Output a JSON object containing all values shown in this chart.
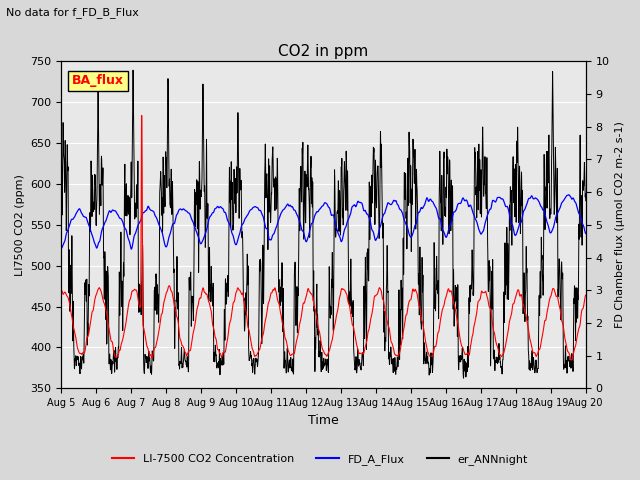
{
  "title": "CO2 in ppm",
  "title_note": "No data for f_FD_B_Flux",
  "ylabel_left": "LI7500 CO2 (ppm)",
  "ylabel_right": "FD Chamber flux (μmol CO2 m-2 s-1)",
  "xlabel": "Time",
  "ylim_left": [
    350,
    750
  ],
  "ylim_right": [
    0.0,
    10.0
  ],
  "yticks_left": [
    350,
    400,
    450,
    500,
    550,
    600,
    650,
    700,
    750
  ],
  "yticks_right": [
    0.0,
    1.0,
    2.0,
    3.0,
    4.0,
    5.0,
    6.0,
    7.0,
    8.0,
    9.0,
    10.0
  ],
  "xtick_labels": [
    "Aug 5",
    "Aug 6",
    "Aug 7",
    "Aug 8",
    "Aug 9",
    "Aug 10",
    "Aug 11",
    "Aug 12",
    "Aug 13",
    "Aug 14",
    "Aug 15",
    "Aug 16",
    "Aug 17",
    "Aug 18",
    "Aug 19",
    "Aug 20"
  ],
  "legend_label_red": "LI-7500 CO2 Concentration",
  "legend_label_blue": "FD_A_Flux",
  "legend_label_black": "er_ANNnight",
  "ba_flux_label": "BA_flux",
  "line_red": "#ff0000",
  "line_blue": "#0000ff",
  "line_black": "#000000",
  "background_color": "#d8d8d8",
  "plot_bg_color": "#e8e8e8",
  "n_days": 15,
  "seed": 42
}
